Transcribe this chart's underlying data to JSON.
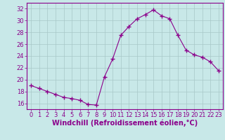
{
  "x": [
    0,
    1,
    2,
    3,
    4,
    5,
    6,
    7,
    8,
    9,
    10,
    11,
    12,
    13,
    14,
    15,
    16,
    17,
    18,
    19,
    20,
    21,
    22,
    23
  ],
  "y": [
    19.0,
    18.5,
    18.0,
    17.5,
    17.0,
    16.8,
    16.5,
    15.8,
    15.7,
    20.5,
    23.5,
    27.5,
    29.0,
    30.3,
    31.0,
    31.8,
    30.8,
    30.3,
    27.5,
    25.0,
    24.2,
    23.8,
    23.0,
    21.5
  ],
  "line_color": "#8b008b",
  "marker": "+",
  "marker_size": 4,
  "bg_color": "#c8e8e8",
  "grid_color": "#a8c8c8",
  "xlabel": "Windchill (Refroidissement éolien,°C)",
  "xlim": [
    -0.5,
    23.5
  ],
  "ylim": [
    15.0,
    33.0
  ],
  "yticks": [
    16,
    18,
    20,
    22,
    24,
    26,
    28,
    30,
    32
  ],
  "xticks": [
    0,
    1,
    2,
    3,
    4,
    5,
    6,
    7,
    8,
    9,
    10,
    11,
    12,
    13,
    14,
    15,
    16,
    17,
    18,
    19,
    20,
    21,
    22,
    23
  ],
  "tick_color": "#8b008b",
  "xlabel_color": "#8b008b",
  "xlabel_fontsize": 7,
  "tick_fontsize": 6,
  "spine_color": "#8b008b",
  "line_width": 0.8
}
